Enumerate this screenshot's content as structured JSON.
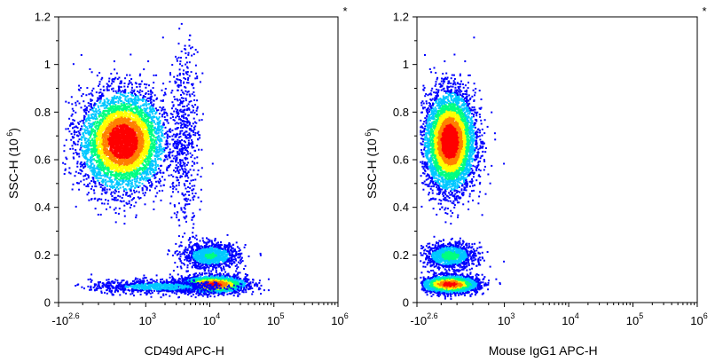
{
  "chart_data": [
    {
      "type": "scatter",
      "subtype": "flow-cytometry-density",
      "title": "",
      "xlabel": "CD49d APC-H",
      "ylabel": "SSC-H",
      "ylabel_unit_base": "10",
      "ylabel_unit_exp": "6",
      "corner_mark": "*",
      "x_scale": "biexponential",
      "x_ticks": [
        {
          "base": "-10",
          "exp": "2.6",
          "value": -398
        },
        {
          "base": "10",
          "exp": "3",
          "value": 1000
        },
        {
          "base": "10",
          "exp": "4",
          "value": 10000
        },
        {
          "base": "10",
          "exp": "5",
          "value": 100000
        },
        {
          "base": "10",
          "exp": "6",
          "value": 1000000
        }
      ],
      "ylim": [
        0,
        1.2
      ],
      "y_ticks": [
        "0",
        "0.2",
        "0.4",
        "0.6",
        "0.8",
        "1",
        "1.2"
      ],
      "populations": [
        {
          "name": "CD49d-negative high SSC",
          "x_center": 700,
          "y_center": 0.68,
          "relative_density": 1.0
        },
        {
          "name": "CD49d-positive high SSC streak",
          "x_center": 4000,
          "y_center": 0.7,
          "relative_density": 0.12
        },
        {
          "name": "CD49d-positive mid SSC",
          "x_center": 10000,
          "y_center": 0.2,
          "relative_density": 0.35
        },
        {
          "name": "CD49d-positive low SSC",
          "x_center": 11000,
          "y_center": 0.08,
          "relative_density": 0.9
        },
        {
          "name": "low SSC tail",
          "x_center": 1500,
          "y_center": 0.07,
          "relative_density": 0.25
        }
      ],
      "colormap": [
        "#0000ff",
        "#00c8ff",
        "#00ff80",
        "#ffff00",
        "#ff8000",
        "#ff0000"
      ]
    },
    {
      "type": "scatter",
      "subtype": "flow-cytometry-density",
      "title": "",
      "xlabel": "Mouse IgG1 APC-H",
      "ylabel": "SSC-H",
      "ylabel_unit_base": "10",
      "ylabel_unit_exp": "6",
      "corner_mark": "*",
      "x_scale": "biexponential",
      "x_ticks": [
        {
          "base": "-10",
          "exp": "2.6",
          "value": -398
        },
        {
          "base": "10",
          "exp": "3",
          "value": 1000
        },
        {
          "base": "10",
          "exp": "4",
          "value": 10000
        },
        {
          "base": "10",
          "exp": "5",
          "value": 100000
        },
        {
          "base": "10",
          "exp": "6",
          "value": 1000000
        }
      ],
      "ylim": [
        0,
        1.2
      ],
      "y_ticks": [
        "0",
        "0.2",
        "0.4",
        "0.6",
        "0.8",
        "1",
        "1.2"
      ],
      "populations": [
        {
          "name": "isotype high SSC",
          "x_center": 300,
          "y_center": 0.68,
          "relative_density": 1.0
        },
        {
          "name": "isotype mid SSC",
          "x_center": 300,
          "y_center": 0.2,
          "relative_density": 0.4
        },
        {
          "name": "isotype low SSC",
          "x_center": 300,
          "y_center": 0.08,
          "relative_density": 0.9
        }
      ],
      "colormap": [
        "#0000ff",
        "#00c8ff",
        "#00ff80",
        "#ffff00",
        "#ff8000",
        "#ff0000"
      ]
    }
  ]
}
